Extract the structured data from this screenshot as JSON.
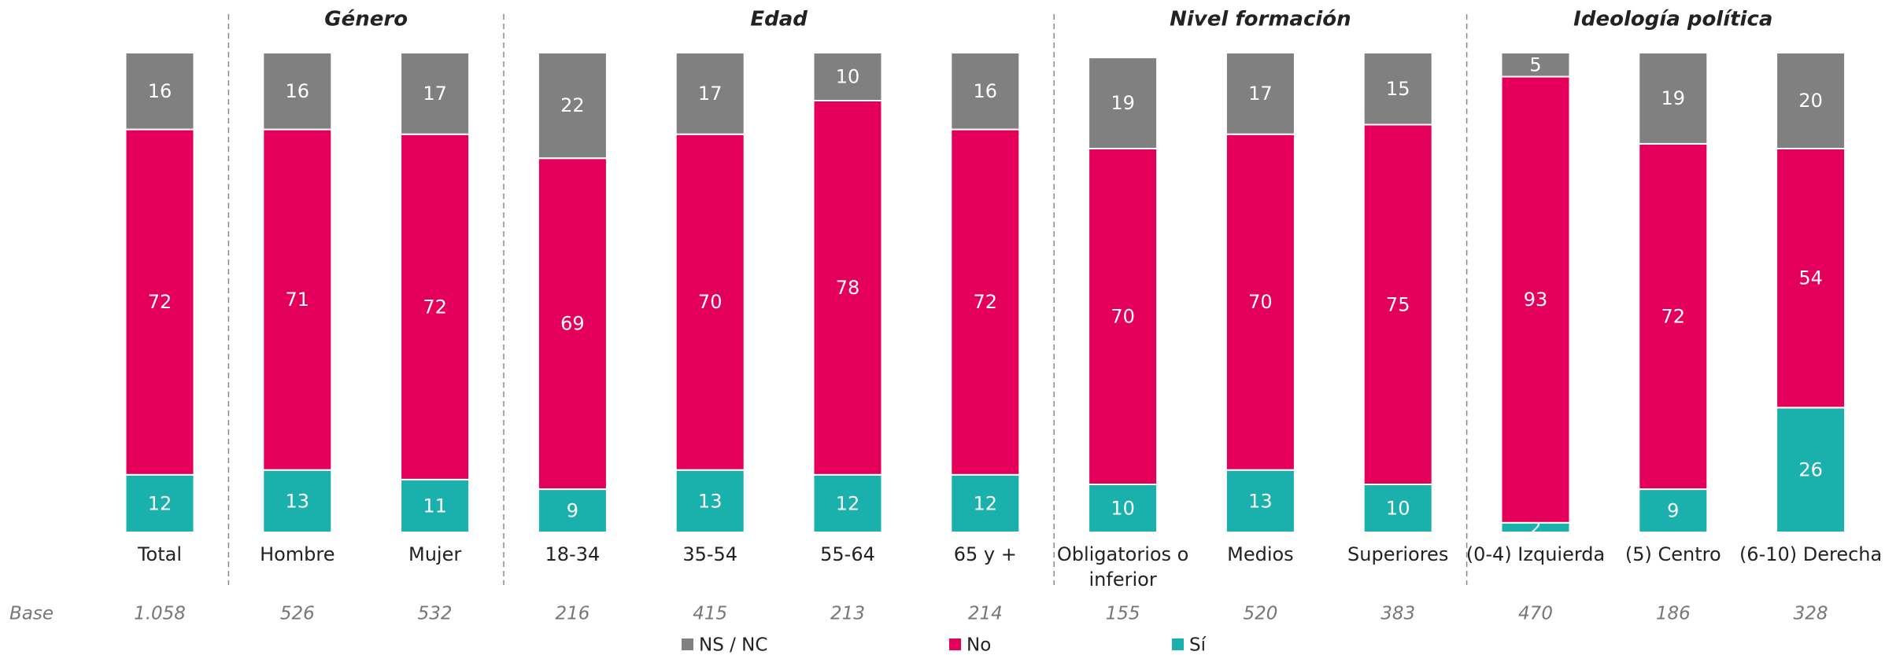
{
  "chart_data": {
    "type": "stacked_bar",
    "categories": [
      "Total",
      "Hombre",
      "Mujer",
      "18-34",
      "35-54",
      "55-64",
      "65 y +",
      "Obligatorios o inferior",
      "Medios",
      "Superiores",
      "(0-4) Izquierda",
      "(5) Centro",
      "(6-10) Derecha"
    ],
    "groups": [
      "Género",
      "Edad",
      "Nivel formación",
      "Ideología política"
    ],
    "series": [
      {
        "name": "NS / NC",
        "color": "#808080",
        "values": [
          16,
          16,
          17,
          22,
          17,
          10,
          16,
          19,
          17,
          15,
          5,
          19,
          20
        ]
      },
      {
        "name": "No",
        "color": "#e4005a",
        "values": [
          72,
          71,
          72,
          69,
          70,
          78,
          72,
          70,
          70,
          75,
          93,
          72,
          54
        ]
      },
      {
        "name": "Sí",
        "color": "#1ab0ac",
        "values": [
          12,
          13,
          11,
          9,
          13,
          12,
          12,
          10,
          13,
          10,
          2,
          9,
          26
        ]
      }
    ],
    "ylim": [
      0,
      100
    ],
    "base_title": "Base",
    "base": [
      "1.058",
      "526",
      "532",
      "216",
      "415",
      "213",
      "214",
      "155",
      "520",
      "383",
      "470",
      "186",
      "328"
    ]
  }
}
